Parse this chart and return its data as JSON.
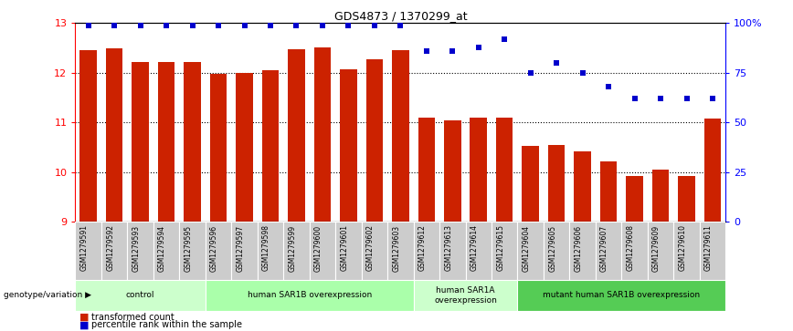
{
  "title": "GDS4873 / 1370299_at",
  "samples": [
    "GSM1279591",
    "GSM1279592",
    "GSM1279593",
    "GSM1279594",
    "GSM1279595",
    "GSM1279596",
    "GSM1279597",
    "GSM1279598",
    "GSM1279599",
    "GSM1279600",
    "GSM1279601",
    "GSM1279602",
    "GSM1279603",
    "GSM1279612",
    "GSM1279613",
    "GSM1279614",
    "GSM1279615",
    "GSM1279604",
    "GSM1279605",
    "GSM1279606",
    "GSM1279607",
    "GSM1279608",
    "GSM1279609",
    "GSM1279610",
    "GSM1279611"
  ],
  "bar_values": [
    12.45,
    12.5,
    12.22,
    12.22,
    12.22,
    11.97,
    12.0,
    12.05,
    12.48,
    12.52,
    12.08,
    12.28,
    12.45,
    11.1,
    11.05,
    11.1,
    11.1,
    10.52,
    10.55,
    10.42,
    10.22,
    9.92,
    10.05,
    9.92,
    11.08
  ],
  "percentile_values": [
    99,
    99,
    99,
    99,
    99,
    99,
    99,
    99,
    99,
    99,
    99,
    99,
    99,
    86,
    86,
    88,
    92,
    75,
    80,
    75,
    68,
    62,
    62,
    62,
    62
  ],
  "groups": [
    {
      "label": "control",
      "start": 0,
      "end": 5,
      "color": "#ccffcc"
    },
    {
      "label": "human SAR1B overexpression",
      "start": 5,
      "end": 13,
      "color": "#aaffaa"
    },
    {
      "label": "human SAR1A\noverexpression",
      "start": 13,
      "end": 17,
      "color": "#ccffcc"
    },
    {
      "label": "mutant human SAR1B overexpression",
      "start": 17,
      "end": 25,
      "color": "#55cc55"
    }
  ],
  "ylim": [
    9,
    13
  ],
  "yticks": [
    9,
    10,
    11,
    12,
    13
  ],
  "bar_color": "#cc2200",
  "dot_color": "#0000cc",
  "background_color": "#ffffff"
}
